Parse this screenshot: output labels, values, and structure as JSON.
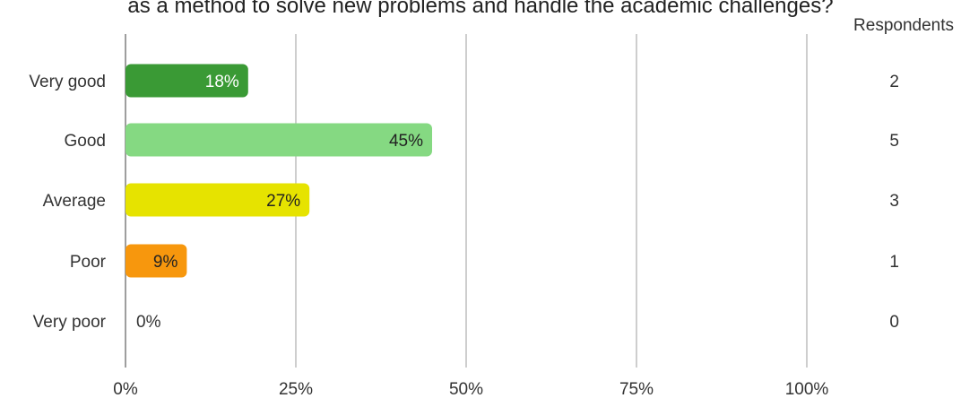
{
  "chart_data": {
    "type": "bar",
    "orientation": "horizontal",
    "title": "as a method to solve new problems and handle the academic challenges?",
    "categories": [
      "Very good",
      "Good",
      "Average",
      "Poor",
      "Very poor"
    ],
    "values": [
      18,
      45,
      27,
      9,
      0
    ],
    "value_labels": [
      "18%",
      "45%",
      "27%",
      "9%",
      "0%"
    ],
    "respondents_header": "Respondents",
    "respondents": [
      "2",
      "5",
      "3",
      "1",
      "0"
    ],
    "x_ticks": [
      "0%",
      "25%",
      "50%",
      "75%",
      "100%"
    ],
    "xlim": [
      0,
      100
    ],
    "grid": true,
    "colors": [
      "#3a9a35",
      "#85d982",
      "#e6e300",
      "#f7970d",
      "#9e9e9e"
    ],
    "label_colors": [
      "#ffffff",
      "#222222",
      "#222222",
      "#222222",
      "#333333"
    ],
    "gridline_color": "#9e9e9e"
  }
}
